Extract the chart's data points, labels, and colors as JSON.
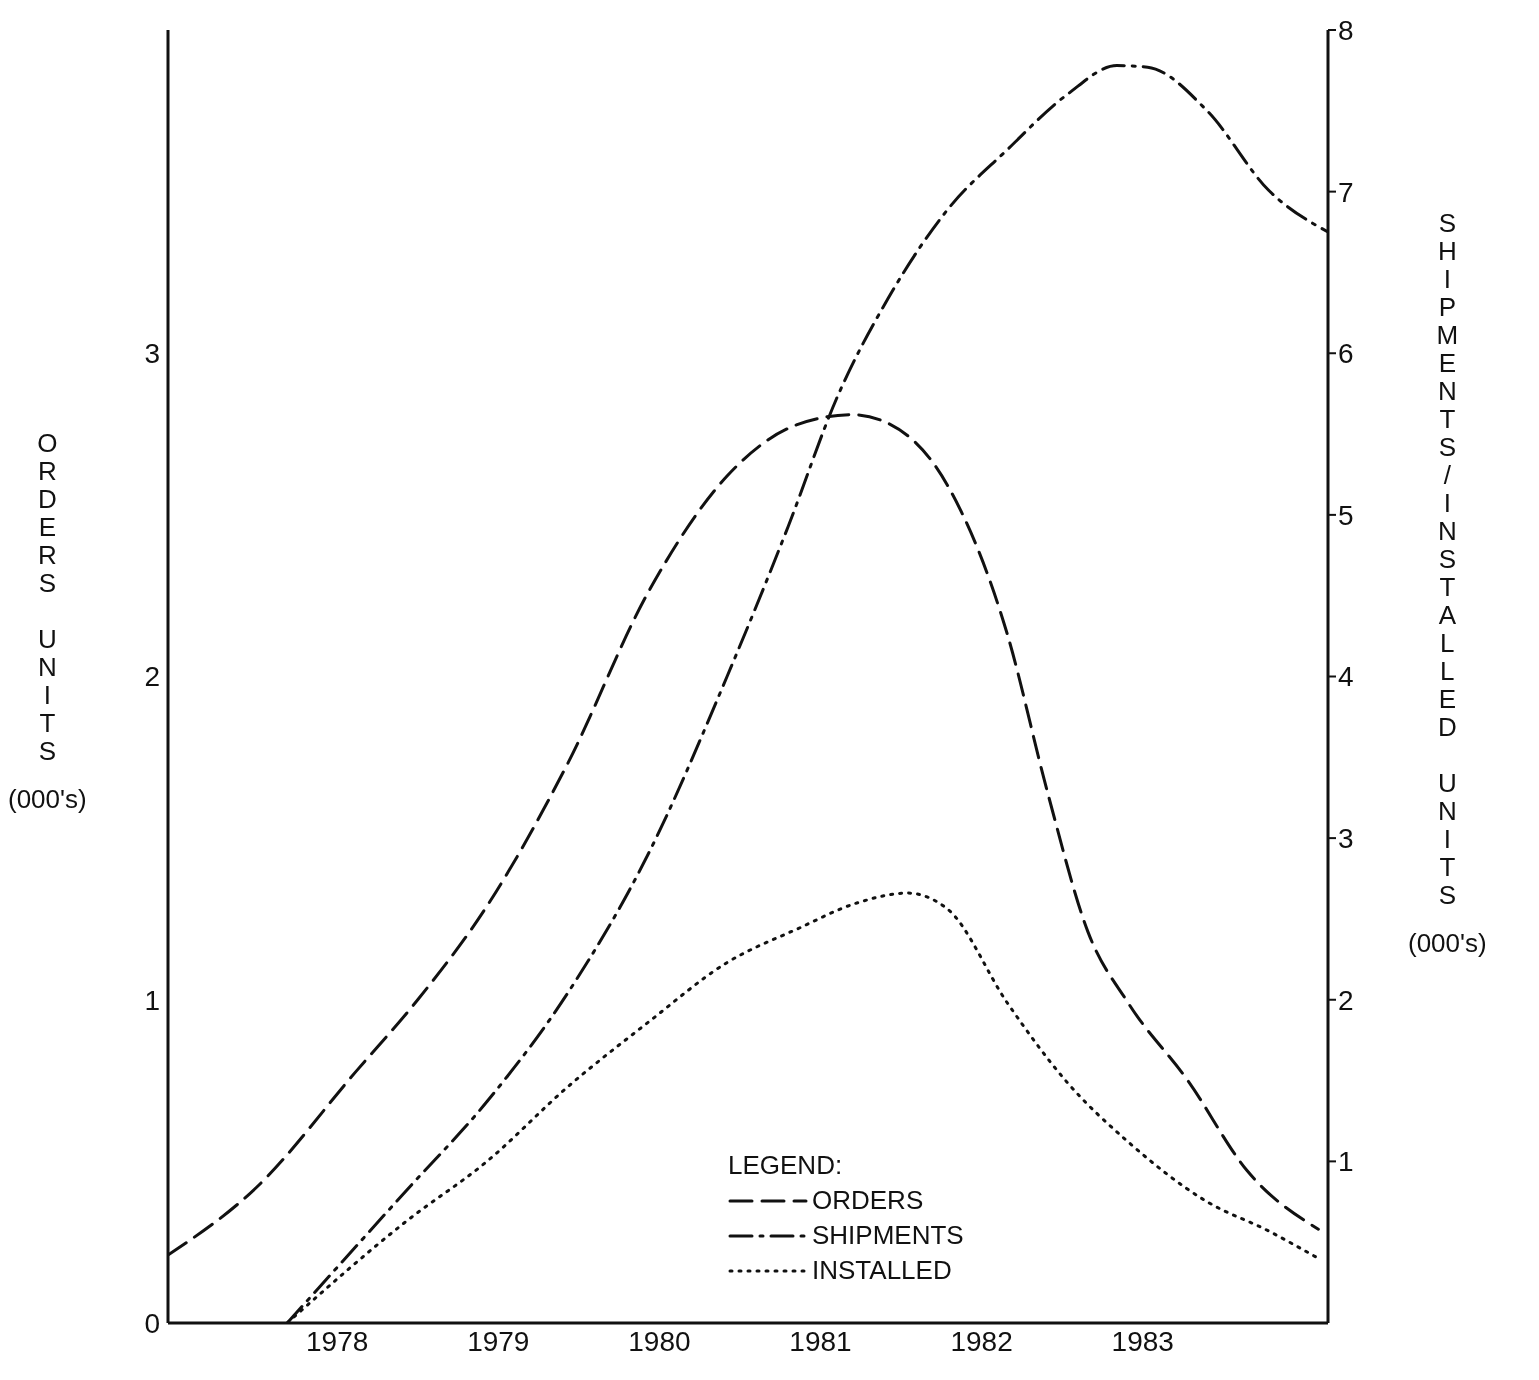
{
  "chart_data": {
    "type": "line",
    "ylabel": "ORDERS UNITS (000's)",
    "y2label": "SHIPMENTS/INSTALLED UNITS (000's)",
    "legend_title": "LEGEND:",
    "legend": "bottom",
    "marker": "none",
    "xlim": [
      1976.95,
      1984.15
    ],
    "xticks": [
      1978,
      1979,
      1980,
      1981,
      1982,
      1983
    ],
    "ylim": [
      0,
      4
    ],
    "yticks": [
      0,
      1,
      2,
      3
    ],
    "y2lim": [
      0,
      8
    ],
    "y2ticks": [
      1,
      2,
      3,
      4,
      5,
      6,
      7,
      8
    ],
    "series": [
      {
        "name": "ORDERS",
        "color": "#111111",
        "line_style": "dashed",
        "axis": "y",
        "x": [
          1976.95,
          1977.5,
          1978.12,
          1978.5,
          1978.93,
          1979.43,
          1979.93,
          1980.42,
          1980.86,
          1981.2,
          1981.39,
          1981.79,
          1982.16,
          1982.41,
          1982.66,
          1982.91,
          1983.28,
          1983.65,
          1984.09
        ],
        "values": [
          0.21,
          0.42,
          0.78,
          1.0,
          1.29,
          1.73,
          2.26,
          2.62,
          2.78,
          2.81,
          2.79,
          2.59,
          2.13,
          1.64,
          1.21,
          0.99,
          0.75,
          0.47,
          0.29
        ]
      },
      {
        "name": "SHIPMENTS",
        "color": "#111111",
        "line_style": "dashdot",
        "axis": "y2",
        "x": [
          1977.69,
          1978.43,
          1978.93,
          1979.43,
          1979.93,
          1980.42,
          1980.8,
          1981.1,
          1981.42,
          1981.79,
          1982.16,
          1982.53,
          1982.84,
          1983.03,
          1983.4,
          1983.78,
          1984.15
        ],
        "values": [
          0,
          0.82,
          1.37,
          2.04,
          2.9,
          4.0,
          4.93,
          5.72,
          6.34,
          6.89,
          7.26,
          7.6,
          7.78,
          7.77,
          7.5,
          7.01,
          6.75
        ]
      },
      {
        "name": "INSTALLED",
        "color": "#111111",
        "line_style": "dotted",
        "axis": "y2",
        "x": [
          1977.69,
          1978.43,
          1978.93,
          1979.43,
          1979.93,
          1980.42,
          1980.86,
          1981.23,
          1981.54,
          1981.79,
          1982.16,
          1982.53,
          1982.91,
          1983.4,
          1983.78,
          1984.09
        ],
        "values": [
          0,
          0.63,
          1.0,
          1.46,
          1.86,
          2.23,
          2.44,
          2.6,
          2.66,
          2.56,
          1.98,
          1.49,
          1.12,
          0.75,
          0.57,
          0.4
        ]
      }
    ]
  }
}
